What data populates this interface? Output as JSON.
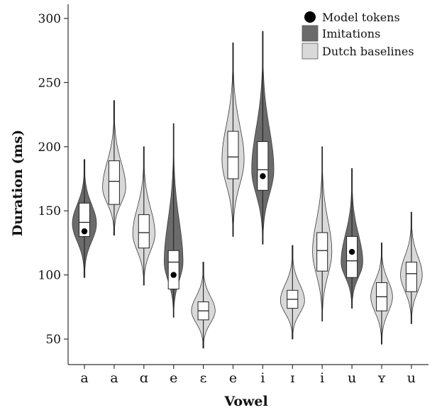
{
  "chart_data": {
    "type": "violin",
    "xlabel": "Vowel",
    "ylabel": "Duration (ms)",
    "ylim": [
      30,
      310
    ],
    "y_ticks": [
      50,
      100,
      150,
      200,
      250,
      300
    ],
    "categories": [
      "a",
      "a",
      "ɑ",
      "e",
      "ɛ",
      "e",
      "i",
      "ɪ",
      "i",
      "u",
      "ʏ",
      "u"
    ],
    "groups": [
      {
        "label": "a",
        "series": "Imitations",
        "min": 98,
        "max": 190,
        "q1": 130,
        "median": 141,
        "q3": 156,
        "mode": 140,
        "halfwidth": 1.0,
        "model_token": 134
      },
      {
        "label": "a",
        "series": "Dutch baselines",
        "min": 131,
        "max": 236,
        "q1": 155,
        "median": 173,
        "q3": 189,
        "mode": 168,
        "halfwidth": 0.96,
        "model_token": null
      },
      {
        "label": "ɑ",
        "series": "Dutch baselines",
        "min": 92,
        "max": 200,
        "q1": 121,
        "median": 133,
        "q3": 147,
        "mode": 132,
        "halfwidth": 0.92,
        "model_token": null
      },
      {
        "label": "e",
        "series": "Imitations",
        "min": 67,
        "max": 218,
        "q1": 89,
        "median": 110,
        "q3": 119,
        "mode": 110,
        "halfwidth": 0.78,
        "model_token": 100
      },
      {
        "label": "ɛ",
        "series": "Dutch baselines",
        "min": 43,
        "max": 110,
        "q1": 65,
        "median": 72,
        "q3": 79,
        "mode": 72,
        "halfwidth": 0.98,
        "model_token": null
      },
      {
        "label": "e",
        "series": "Dutch baselines",
        "min": 130,
        "max": 281,
        "q1": 175,
        "median": 192,
        "q3": 212,
        "mode": 190,
        "halfwidth": 0.92,
        "model_token": null
      },
      {
        "label": "i",
        "series": "Imitations",
        "min": 124,
        "max": 290,
        "q1": 166,
        "median": 182,
        "q3": 204,
        "mode": 182,
        "halfwidth": 0.92,
        "model_token": 177
      },
      {
        "label": "ɪ",
        "series": "Dutch baselines",
        "min": 50,
        "max": 123,
        "q1": 74,
        "median": 81,
        "q3": 88,
        "mode": 80,
        "halfwidth": 1.0,
        "model_token": null
      },
      {
        "label": "i",
        "series": "Dutch baselines",
        "min": 64,
        "max": 200,
        "q1": 103,
        "median": 119,
        "q3": 133,
        "mode": 118,
        "halfwidth": 0.8,
        "model_token": null
      },
      {
        "label": "u",
        "series": "Imitations",
        "min": 74,
        "max": 183,
        "q1": 98,
        "median": 111,
        "q3": 130,
        "mode": 110,
        "halfwidth": 0.9,
        "model_token": 118
      },
      {
        "label": "ʏ",
        "series": "Dutch baselines",
        "min": 46,
        "max": 125,
        "q1": 72,
        "median": 83,
        "q3": 94,
        "mode": 83,
        "halfwidth": 0.9,
        "model_token": null
      },
      {
        "label": "u",
        "series": "Dutch baselines",
        "min": 62,
        "max": 149,
        "q1": 87,
        "median": 101,
        "q3": 110,
        "mode": 100,
        "halfwidth": 0.9,
        "model_token": null
      }
    ],
    "legend": {
      "position": "top-right",
      "entries": [
        {
          "label": "Model tokens",
          "marker": "dot"
        },
        {
          "label": "Imitations",
          "marker": "square"
        },
        {
          "label": "Dutch baselines",
          "marker": "square"
        }
      ]
    },
    "colors": {
      "Imitations": "#6b6b6b",
      "Dutch baselines": "#d9d9d9",
      "outline": "#3a3a3a",
      "box_fill": "#ffffff",
      "model_token": "#000000"
    },
    "grid": false
  }
}
